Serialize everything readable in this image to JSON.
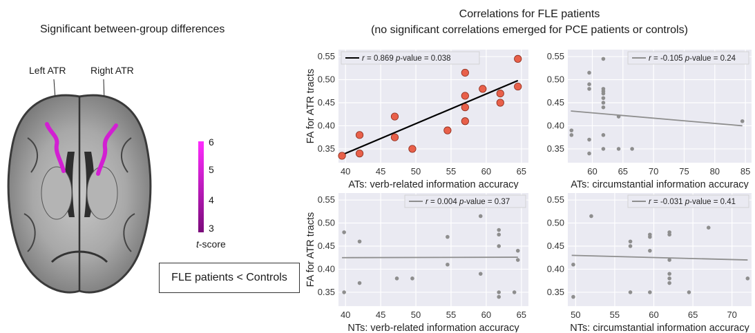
{
  "left_panel": {
    "title": "Significant between-group differences",
    "label_left": "Left ATR",
    "label_right": "Right ATR",
    "colorbar": {
      "ticks": [
        "6",
        "5",
        "4",
        "3"
      ],
      "label_italic": "t",
      "label_rest": "-score",
      "color_top": "#ff2cff",
      "color_bottom": "#7a0a7a"
    },
    "contrast_box": "FLE patients < Controls"
  },
  "right_panel": {
    "title_line1": "Correlations for FLE patients",
    "title_line2": "(no significant correlations emerged for PCE patients or controls)"
  },
  "chart_data": [
    {
      "type": "scatter",
      "xlabel": "ATs: verb-related information accuracy",
      "ylabel": "FA for ATR tracts",
      "xlim": [
        39,
        66
      ],
      "ylim": [
        0.32,
        0.565
      ],
      "xticks": [
        40,
        45,
        50,
        55,
        60,
        65
      ],
      "yticks": [
        0.35,
        0.4,
        0.45,
        0.5,
        0.55
      ],
      "ytick_labels": [
        "0.35",
        "0.40",
        "0.45",
        "0.50",
        "0.55"
      ],
      "annotation": {
        "r_label": "r",
        "r_value": " = 0.869",
        "p_label": "p",
        "p_value": "-value = 0.038"
      },
      "fit_line": {
        "x": [
          39.5,
          64.5
        ],
        "y": [
          0.337,
          0.498
        ]
      },
      "points": {
        "x": [
          39.5,
          42,
          42,
          47,
          47,
          49.5,
          54.5,
          57,
          57,
          57,
          57,
          59.5,
          62,
          62,
          64.5,
          64.5
        ],
        "y": [
          0.335,
          0.34,
          0.38,
          0.375,
          0.42,
          0.35,
          0.39,
          0.41,
          0.44,
          0.465,
          0.515,
          0.48,
          0.45,
          0.47,
          0.485,
          0.545
        ]
      },
      "point_color": "#e8604a",
      "line_color": "#000000",
      "grid": true
    },
    {
      "type": "scatter",
      "xlabel": "ATs: circumstantial information accuracy",
      "ylabel": "",
      "xlim": [
        56,
        86
      ],
      "ylim": [
        0.32,
        0.565
      ],
      "xticks": [
        60,
        65,
        70,
        75,
        80,
        85
      ],
      "yticks": [
        0.35,
        0.4,
        0.45,
        0.5,
        0.55
      ],
      "ytick_labels": [
        "0.35",
        "0.40",
        "0.45",
        "0.50",
        "0.55"
      ],
      "annotation": {
        "r_label": "r",
        "r_value": " = -0.105",
        "p_label": "p",
        "p_value": "-value = 0.24"
      },
      "fit_line": {
        "x": [
          56.5,
          84.5
        ],
        "y": [
          0.432,
          0.4
        ]
      },
      "points": {
        "x": [
          56.6,
          56.6,
          59.5,
          59.5,
          59.5,
          59.5,
          59.5,
          61.8,
          61.8,
          61.8,
          61.8,
          61.8,
          61.8,
          61.8,
          61.8,
          61.8,
          64.3,
          64.3,
          66.5,
          84.5
        ],
        "y": [
          0.38,
          0.39,
          0.34,
          0.37,
          0.48,
          0.49,
          0.515,
          0.35,
          0.38,
          0.44,
          0.45,
          0.46,
          0.47,
          0.475,
          0.48,
          0.545,
          0.35,
          0.42,
          0.35,
          0.41
        ]
      },
      "point_color": "#8e8e8e",
      "line_color": "#8e8e8e",
      "grid": true
    },
    {
      "type": "scatter",
      "xlabel": "NTs: verb-related information accuracy",
      "ylabel": "FA for ATR tracts",
      "xlim": [
        39,
        66
      ],
      "ylim": [
        0.32,
        0.565
      ],
      "xticks": [
        40,
        45,
        50,
        55,
        60,
        65
      ],
      "yticks": [
        0.35,
        0.4,
        0.45,
        0.5,
        0.55
      ],
      "ytick_labels": [
        "0.35",
        "0.40",
        "0.45",
        "0.50",
        "0.55"
      ],
      "annotation": {
        "r_label": "r",
        "r_value": " =  0.004",
        "p_label": "p",
        "p_value": "-value = 0.37"
      },
      "fit_line": {
        "x": [
          39.5,
          64.5
        ],
        "y": [
          0.425,
          0.426
        ]
      },
      "points": {
        "x": [
          39.8,
          39.8,
          42,
          42,
          47.3,
          49.5,
          54.5,
          54.5,
          59.2,
          59.2,
          61.8,
          61.8,
          61.8,
          61.8,
          61.8,
          64,
          64.5,
          64.5
        ],
        "y": [
          0.35,
          0.48,
          0.37,
          0.46,
          0.38,
          0.38,
          0.41,
          0.47,
          0.39,
          0.515,
          0.34,
          0.35,
          0.45,
          0.475,
          0.485,
          0.35,
          0.42,
          0.44
        ]
      },
      "point_color": "#8e8e8e",
      "line_color": "#8e8e8e",
      "grid": true
    },
    {
      "type": "scatter",
      "xlabel": "NTs: circumstantial information accuracy",
      "ylabel": "",
      "xlim": [
        49,
        72.5
      ],
      "ylim": [
        0.32,
        0.565
      ],
      "xticks": [
        50,
        55,
        60,
        65,
        70
      ],
      "yticks": [
        0.35,
        0.4,
        0.45,
        0.5,
        0.55
      ],
      "ytick_labels": [
        "0.35",
        "0.40",
        "0.45",
        "0.50",
        "0.55"
      ],
      "annotation": {
        "r_label": "r",
        "r_value": " = -0.031",
        "p_label": "p",
        "p_value": "-value = 0.41"
      },
      "fit_line": {
        "x": [
          49.5,
          72
        ],
        "y": [
          0.43,
          0.42
        ]
      },
      "points": {
        "x": [
          49.7,
          49.7,
          52,
          57,
          57,
          57,
          59.5,
          59.5,
          59.5,
          59.5,
          62,
          62,
          62,
          62,
          62,
          62,
          64.5,
          67,
          72
        ],
        "y": [
          0.34,
          0.41,
          0.515,
          0.35,
          0.45,
          0.46,
          0.35,
          0.44,
          0.47,
          0.475,
          0.37,
          0.38,
          0.39,
          0.42,
          0.475,
          0.48,
          0.35,
          0.49,
          0.38
        ]
      },
      "point_color": "#8e8e8e",
      "line_color": "#8e8e8e",
      "grid": true
    }
  ]
}
